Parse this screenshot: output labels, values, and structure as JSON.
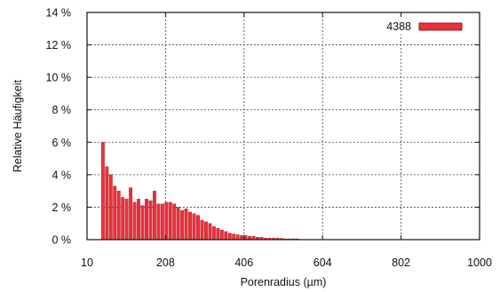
{
  "chart_data": {
    "type": "bar",
    "xlabel": "Porenradius (µm)",
    "ylabel": "Relative Häufigkeit",
    "xlim": [
      10,
      1000
    ],
    "ylim": [
      0,
      14
    ],
    "x_ticks": [
      "10",
      "208",
      "406",
      "604",
      "802",
      "1000"
    ],
    "y_ticks": [
      "0 %",
      "2 %",
      "4 %",
      "6 %",
      "8 %",
      "10 %",
      "12 %",
      "14 %"
    ],
    "grid": true,
    "legend_position": "top-right",
    "series": [
      {
        "name": "4388",
        "color": "#e8323c",
        "bin_width": 10,
        "x": [
          50,
          60,
          70,
          80,
          90,
          100,
          110,
          120,
          130,
          140,
          150,
          160,
          170,
          180,
          190,
          200,
          210,
          220,
          230,
          240,
          250,
          260,
          270,
          280,
          290,
          300,
          310,
          320,
          330,
          340,
          350,
          360,
          370,
          380,
          390,
          400,
          410,
          420,
          430,
          440,
          450,
          460,
          470,
          480,
          490,
          500,
          510,
          520,
          530,
          540
        ],
        "values": [
          6.0,
          4.5,
          4.0,
          3.3,
          3.0,
          2.6,
          2.5,
          3.2,
          2.3,
          2.5,
          2.1,
          2.5,
          2.4,
          3.0,
          2.2,
          2.2,
          2.3,
          2.3,
          2.2,
          2.0,
          1.8,
          1.9,
          1.7,
          1.6,
          1.5,
          1.2,
          1.1,
          1.0,
          0.8,
          0.7,
          0.6,
          0.5,
          0.4,
          0.35,
          0.3,
          0.25,
          0.25,
          0.2,
          0.2,
          0.15,
          0.15,
          0.1,
          0.1,
          0.1,
          0.1,
          0.08,
          0.05,
          0.05,
          0.05,
          0.05
        ]
      }
    ]
  }
}
